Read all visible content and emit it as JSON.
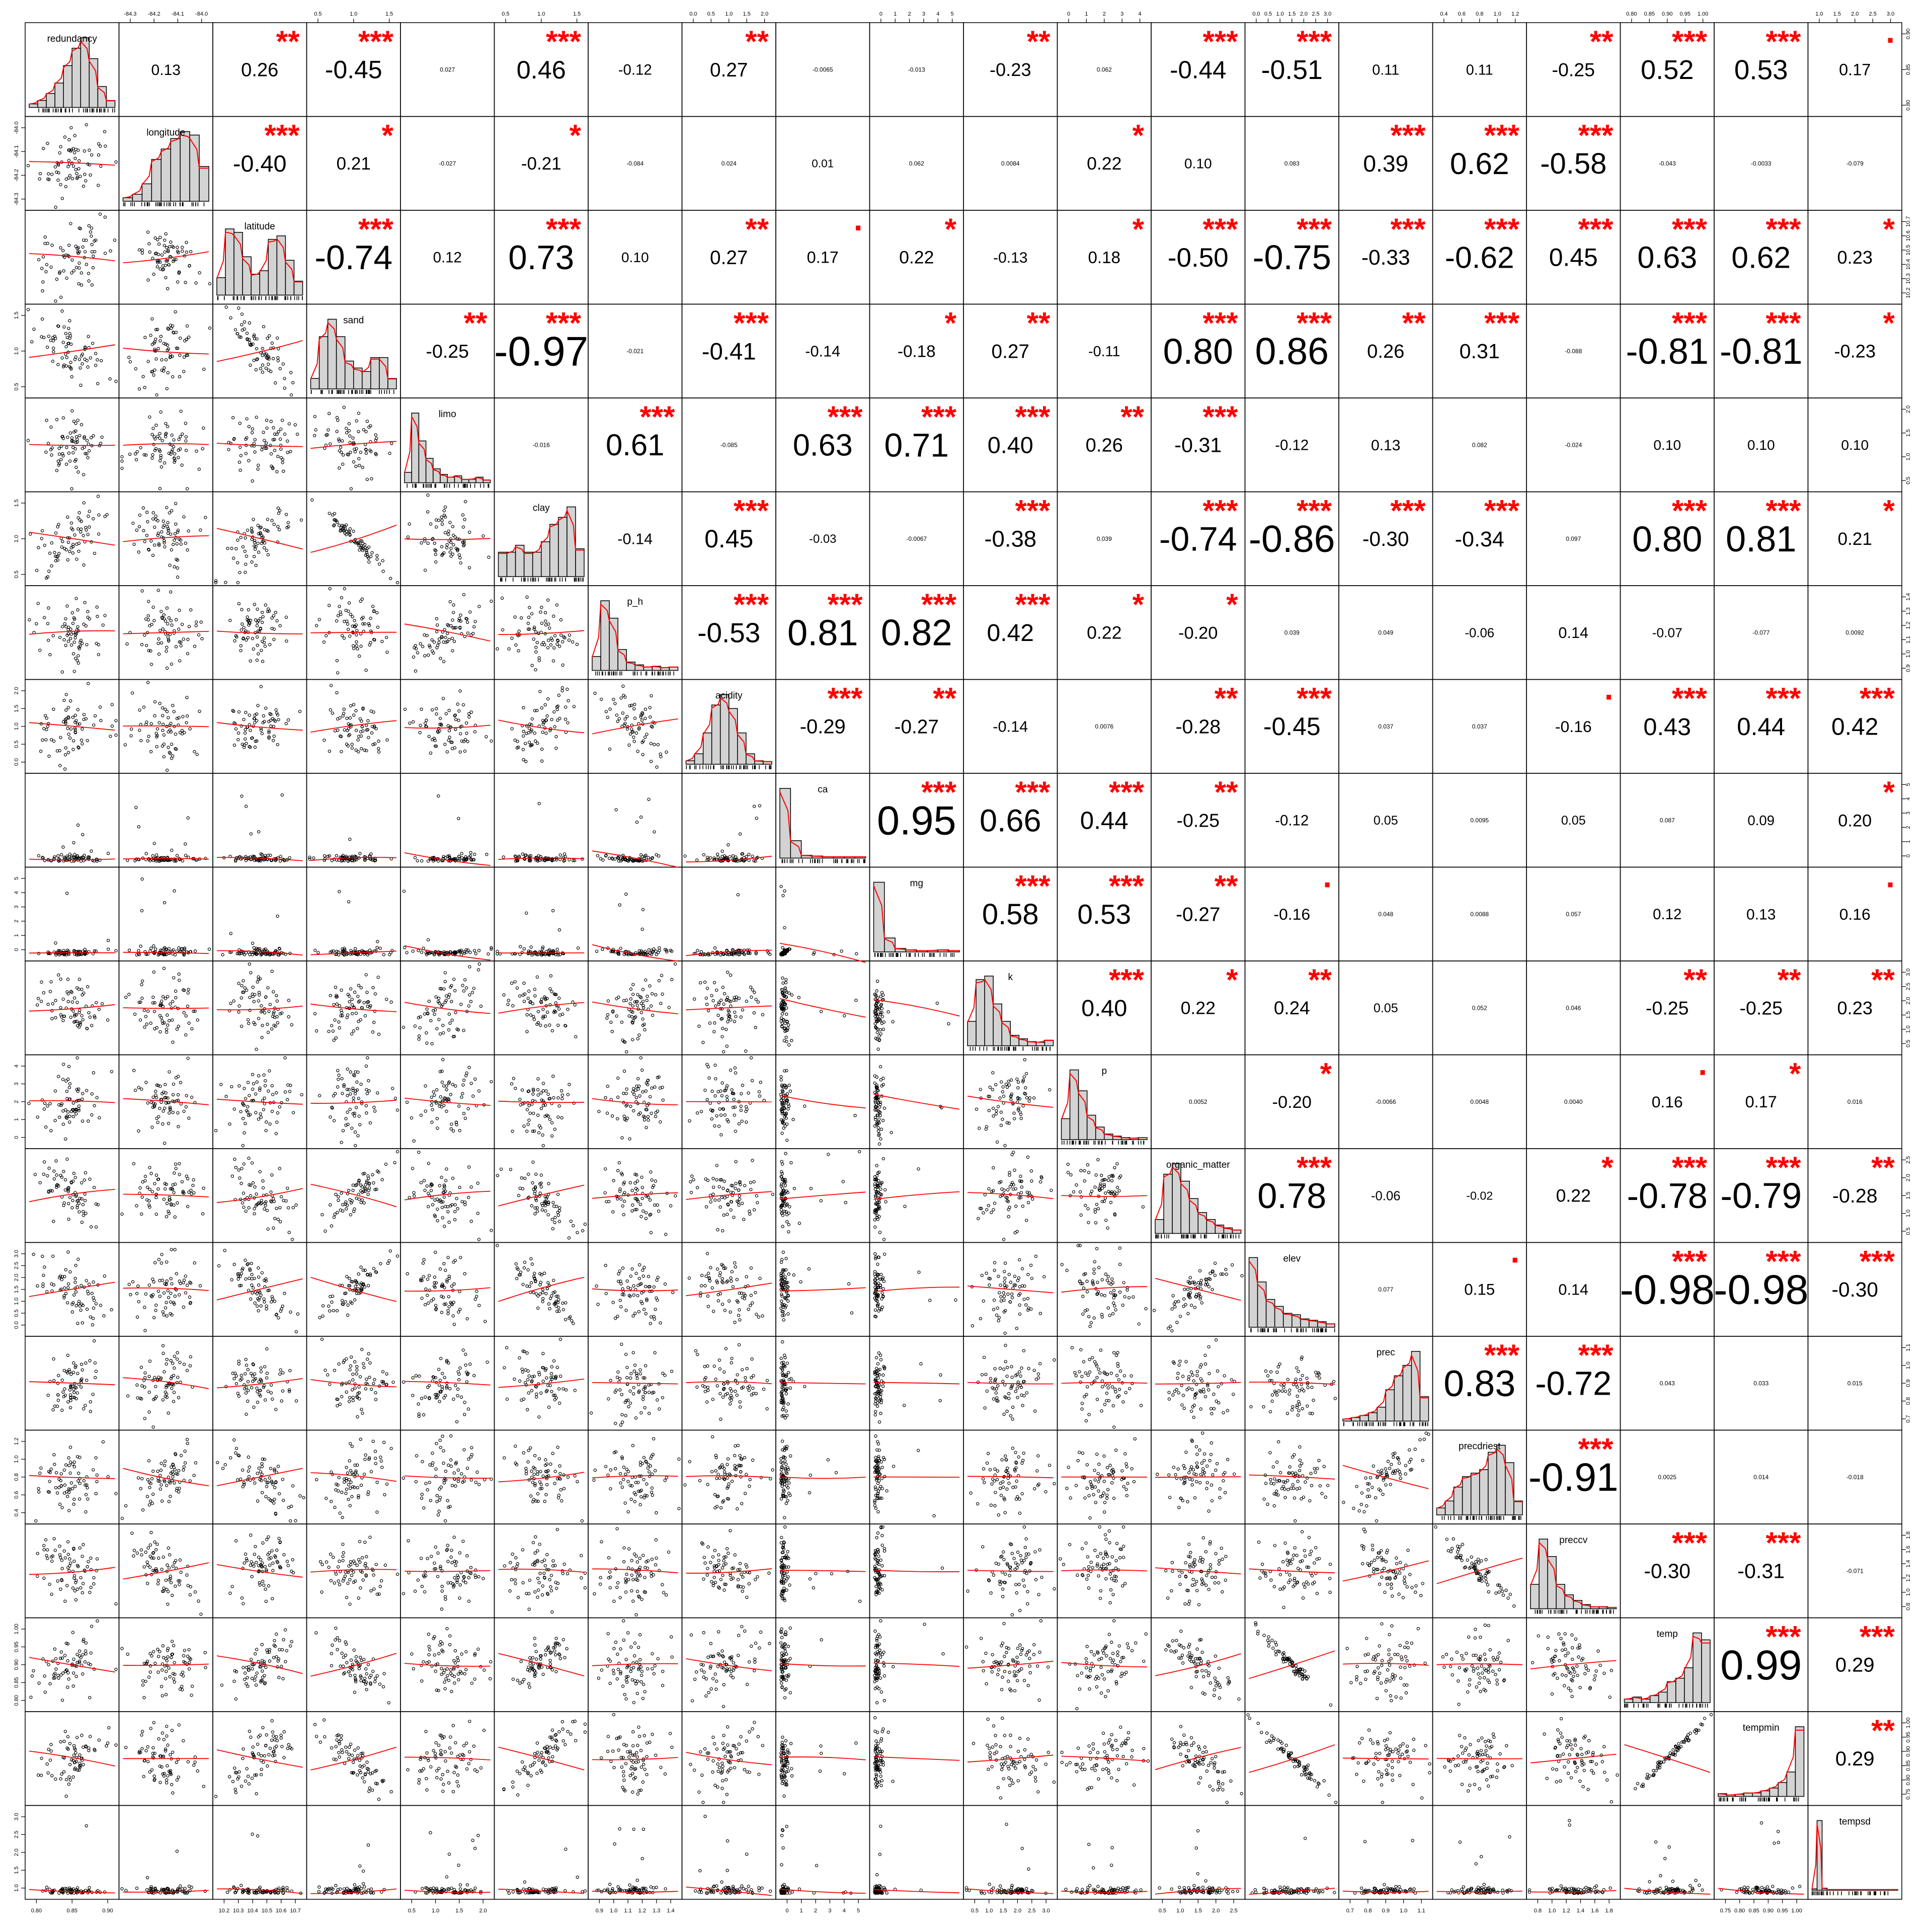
{
  "chart_data": {
    "type": "scatter-matrix",
    "title": "",
    "variables": [
      "redundancy",
      "longitude",
      "latitude",
      "sand",
      "limo",
      "clay",
      "p_h",
      "acidity",
      "ca",
      "mg",
      "k",
      "p",
      "organic_matter",
      "elev",
      "prec",
      "precdriest",
      "preccv",
      "temp",
      "tempmin",
      "tempsd"
    ],
    "correlations": [
      [
        "0.13",
        "0.26",
        "-0.45",
        "0.027",
        "0.46",
        "-0.12",
        "0.27",
        "-0.0065",
        "-0.013",
        "-0.23",
        "0.062",
        "-0.44",
        "-0.51",
        "0.11",
        "0.11",
        "-0.25",
        "0.52",
        "0.53",
        "0.17"
      ],
      [
        "-0.40",
        "0.21",
        "-0.027",
        "-0.21",
        "-0.084",
        "0.024",
        "0.01",
        "0.062",
        "0.0084",
        "0.22",
        "0.10",
        "0.083",
        "0.39",
        "0.62",
        "-0.58",
        "-0.043",
        "-0.0033",
        "-0.079"
      ],
      [
        "-0.74",
        "0.12",
        "0.73",
        "0.10",
        "0.27",
        "0.17",
        "0.22",
        "-0.13",
        "0.18",
        "-0.50",
        "-0.75",
        "-0.33",
        "-0.62",
        "0.45",
        "0.63",
        "0.62",
        "0.23"
      ],
      [
        "-0.25",
        "-0.97",
        "-0.021",
        "-0.41",
        "-0.14",
        "-0.18",
        "0.27",
        "-0.11",
        "0.80",
        "0.86",
        "0.26",
        "0.31",
        "-0.088",
        "-0.81",
        "-0.81",
        "-0.23"
      ],
      [
        "-0.016",
        "0.61",
        "-0.085",
        "0.63",
        "0.71",
        "0.40",
        "0.26",
        "-0.31",
        "-0.12",
        "0.13",
        "0.082",
        "-0.024",
        "0.10",
        "0.10",
        "0.10"
      ],
      [
        "-0.14",
        "0.45",
        "-0.03",
        "-0.0067",
        "-0.38",
        "0.039",
        "-0.74",
        "-0.86",
        "-0.30",
        "-0.34",
        "0.097",
        "0.80",
        "0.81",
        "0.21"
      ],
      [
        "-0.53",
        "0.81",
        "0.82",
        "0.42",
        "0.22",
        "-0.20",
        "0.039",
        "0.049",
        "-0.06",
        "0.14",
        "-0.07",
        "-0.077",
        "0.0092"
      ],
      [
        "-0.29",
        "-0.27",
        "-0.14",
        "0.0076",
        "-0.28",
        "-0.45",
        "0.037",
        "0.037",
        "-0.16",
        "0.43",
        "0.44",
        "0.42"
      ],
      [
        "0.95",
        "0.66",
        "0.44",
        "-0.25",
        "-0.12",
        "0.05",
        "0.0095",
        "0.05",
        "0.087",
        "0.09",
        "0.20"
      ],
      [
        "0.58",
        "0.53",
        "-0.27",
        "-0.16",
        "0.048",
        "0.0088",
        "0.057",
        "0.12",
        "0.13",
        "0.16"
      ],
      [
        "0.40",
        "0.22",
        "0.24",
        "0.05",
        "0.052",
        "0.046",
        "-0.25",
        "-0.25",
        "0.23"
      ],
      [
        "0.0052",
        "-0.20",
        "-0.0066",
        "0.0048",
        "0.0040",
        "0.16",
        "0.17",
        "0.016"
      ],
      [
        "0.78",
        "-0.06",
        "-0.02",
        "0.22",
        "-0.78",
        "-0.79",
        "-0.28"
      ],
      [
        "0.077",
        "0.15",
        "0.14",
        "-0.98",
        "-0.98",
        "-0.30"
      ],
      [
        "0.83",
        "-0.72",
        "0.043",
        "0.033",
        "0.015"
      ],
      [
        "-0.91",
        "0.0025",
        "0.014",
        "-0.018"
      ],
      [
        "-0.30",
        "-0.31",
        "-0.071"
      ],
      [
        "0.99",
        "0.29"
      ],
      [
        "0.29"
      ]
    ],
    "significance": [
      [
        "",
        "**",
        "***",
        "",
        "***",
        "",
        "**",
        "",
        "",
        "**",
        "",
        "***",
        "***",
        "",
        "",
        "**",
        "***",
        "***",
        "."
      ],
      [
        "***",
        "*",
        "",
        "*",
        "",
        "",
        "",
        "",
        "",
        "*",
        "",
        "",
        "***",
        "***",
        "***",
        "",
        "",
        ""
      ],
      [
        "***",
        "",
        "***",
        "",
        "**",
        ".",
        "*",
        "",
        "*",
        "***",
        "***",
        "***",
        "***",
        "***",
        "***",
        "***",
        "*"
      ],
      [
        "**",
        "***",
        "",
        "***",
        "",
        "*",
        "**",
        "",
        "***",
        "***",
        "**",
        "***",
        "",
        "***",
        "***",
        "*"
      ],
      [
        "",
        "***",
        "",
        "***",
        "***",
        "***",
        "**",
        "***",
        "",
        "",
        "",
        "",
        "",
        "",
        ""
      ],
      [
        "",
        "***",
        "",
        "",
        "***",
        "",
        "***",
        "***",
        "***",
        "***",
        "",
        "***",
        "***",
        "*"
      ],
      [
        "***",
        "***",
        "***",
        "***",
        "*",
        "*",
        "",
        "",
        "",
        "",
        "",
        "",
        ""
      ],
      [
        "***",
        "**",
        "",
        "",
        "**",
        "***",
        "",
        "",
        ".",
        "***",
        "***",
        "***"
      ],
      [
        "***",
        "***",
        "***",
        "**",
        "",
        "",
        "",
        "",
        "",
        "",
        "*"
      ],
      [
        "***",
        "***",
        "**",
        ".",
        "",
        "",
        "",
        "",
        "",
        "."
      ],
      [
        "***",
        "*",
        "**",
        "",
        "",
        "",
        "**",
        "**",
        "**"
      ],
      [
        "",
        "*",
        "",
        "",
        "",
        ".",
        "*",
        ""
      ],
      [
        "***",
        "",
        "",
        "*",
        "***",
        "***",
        "**"
      ],
      [
        "",
        ".",
        "",
        "***",
        "***",
        "***"
      ],
      [
        "***",
        "***",
        "",
        "",
        ""
      ],
      [
        "***",
        "",
        "",
        ""
      ],
      [
        "***",
        "***",
        ""
      ],
      [
        "***",
        "***"
      ],
      [
        "**"
      ]
    ],
    "ticks": {
      "redundancy": [
        "0.80",
        "0.85",
        "0.90"
      ],
      "longitude": [
        "-84.3",
        "-84.2",
        "-84.1",
        "-84.0"
      ],
      "latitude": [
        "10.2",
        "10.3",
        "10.4",
        "10.5",
        "10.6",
        "10.7"
      ],
      "sand": [
        "0.5",
        "1.0",
        "1.5"
      ],
      "limo": [
        "0.5",
        "1.0",
        "1.5",
        "2.0"
      ],
      "clay": [
        "0.5",
        "1.0",
        "1.5"
      ],
      "p_h": [
        "0.9",
        "1.0",
        "1.1",
        "1.2",
        "1.3",
        "1.4"
      ],
      "acidity": [
        "0.0",
        "0.5",
        "1.0",
        "1.5",
        "2.0"
      ],
      "ca": [
        "0",
        "1",
        "2",
        "3",
        "4",
        "5"
      ],
      "mg": [
        "0",
        "1",
        "2",
        "3",
        "4",
        "5"
      ],
      "k": [
        "0.5",
        "1.0",
        "1.5",
        "2.0",
        "2.5",
        "3.0"
      ],
      "p": [
        "0",
        "1",
        "2",
        "3",
        "4"
      ],
      "organic_matter": [
        "0.5",
        "1.0",
        "1.5",
        "2.0",
        "2.5"
      ],
      "elev": [
        "0.0",
        "0.5",
        "1.0",
        "1.5",
        "2.0",
        "2.5",
        "3.0"
      ],
      "prec": [
        "0.7",
        "0.8",
        "0.9",
        "1.0",
        "1.1"
      ],
      "precdriest": [
        "0.4",
        "0.6",
        "0.8",
        "1.0",
        "1.2"
      ],
      "preccv": [
        "0.8",
        "1.0",
        "1.2",
        "1.4",
        "1.6",
        "1.8"
      ],
      "temp": [
        "0.80",
        "0.85",
        "0.90",
        "0.95",
        "1.00"
      ],
      "tempmin": [
        "0.75",
        "0.80",
        "0.85",
        "0.90",
        "0.95",
        "1.00"
      ],
      "tempsd": [
        "1.0",
        "1.5",
        "2.0",
        "2.5",
        "3.0"
      ]
    },
    "grid": false,
    "colors": {
      "stars": "#ff0000",
      "smooth": "#ff0000",
      "bars": "#d3d3d3",
      "points": "#000000"
    }
  }
}
